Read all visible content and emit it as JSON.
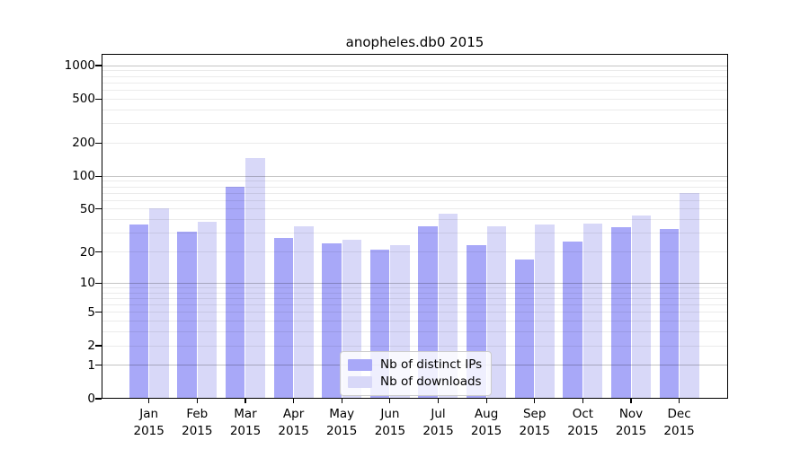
{
  "figure": {
    "background": "#ffffff",
    "text_color": "#000000",
    "frame_color": "#000000"
  },
  "chart_data": {
    "type": "bar",
    "title": "anopheles.db0 2015",
    "categories": [
      "Jan",
      "Feb",
      "Mar",
      "Apr",
      "May",
      "Jun",
      "Jul",
      "Aug",
      "Sep",
      "Oct",
      "Nov",
      "Dec"
    ],
    "x_tick_second_line": "2015",
    "series": [
      {
        "name": "Nb of distinct IPs",
        "color": "#a8a8f8",
        "values": [
          36,
          31,
          80,
          27,
          24,
          21,
          35,
          23,
          17,
          25,
          34,
          33
        ]
      },
      {
        "name": "Nb of downloads",
        "color": "#d8d8f8",
        "values": [
          51,
          38,
          145,
          35,
          26,
          23,
          45,
          35,
          36,
          37,
          44,
          70
        ]
      }
    ],
    "y_axis": {
      "scale": "log10(1+x)",
      "ticks": [
        0,
        1,
        2,
        5,
        10,
        20,
        50,
        100,
        200,
        500,
        1000
      ],
      "ylim": [
        0,
        1000
      ]
    },
    "grid": {
      "major_values": [
        1,
        10,
        100,
        1000
      ],
      "minor_values": [
        2,
        3,
        4,
        5,
        6,
        7,
        8,
        9,
        20,
        30,
        40,
        50,
        60,
        70,
        80,
        90,
        200,
        300,
        400,
        500,
        600,
        700,
        800,
        900
      ],
      "major_color": "rgba(0,0,0,0.23)",
      "minor_color": "rgba(0,0,0,0.08)"
    },
    "legend": {
      "position": "lower center inside",
      "entries": [
        "Nb of distinct IPs",
        "Nb of downloads"
      ]
    }
  }
}
